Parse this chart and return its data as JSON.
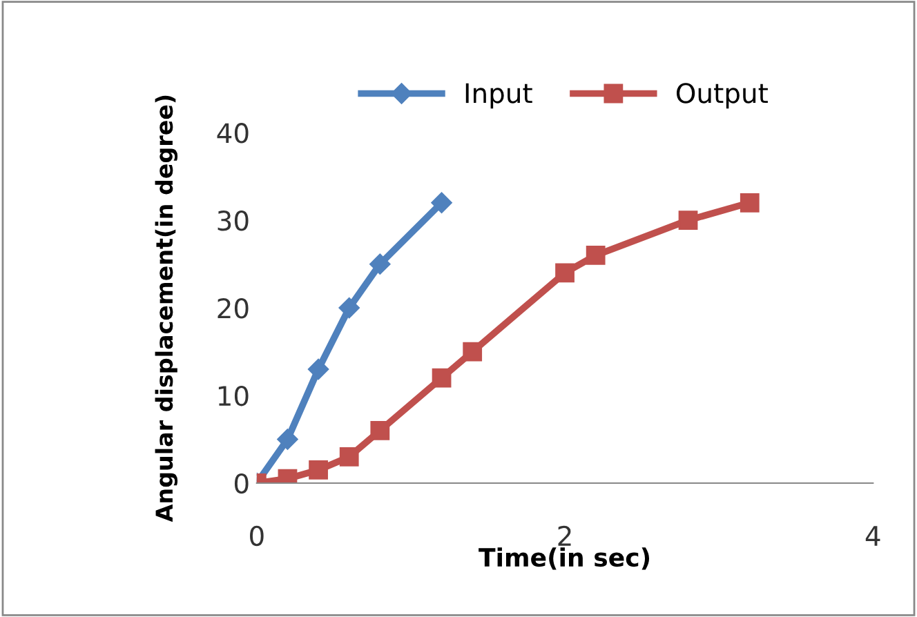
{
  "chart_data": {
    "type": "line",
    "xlabel": "Time(in sec)",
    "ylabel": "Angular displacement(in degree)",
    "xlim": [
      0,
      4
    ],
    "ylim": [
      0,
      40
    ],
    "xticks": [
      0,
      2,
      4
    ],
    "yticks": [
      0,
      10,
      20,
      30,
      40
    ],
    "grid": false,
    "legend": "top",
    "line_style": "solid",
    "series": [
      {
        "name": "Input",
        "color": "#4f81bd",
        "marker": "diamond",
        "x": [
          0,
          0.2,
          0.4,
          0.6,
          0.8,
          1.2
        ],
        "values": [
          0,
          5,
          13,
          20,
          25,
          32
        ]
      },
      {
        "name": "Output",
        "color": "#c0504d",
        "marker": "square",
        "x": [
          0,
          0.2,
          0.4,
          0.6,
          0.8,
          1.2,
          1.4,
          2,
          2.2,
          2.8,
          3.2
        ],
        "values": [
          0,
          0.5,
          1.5,
          3,
          6,
          12,
          15,
          24,
          26,
          30,
          32
        ]
      }
    ]
  }
}
